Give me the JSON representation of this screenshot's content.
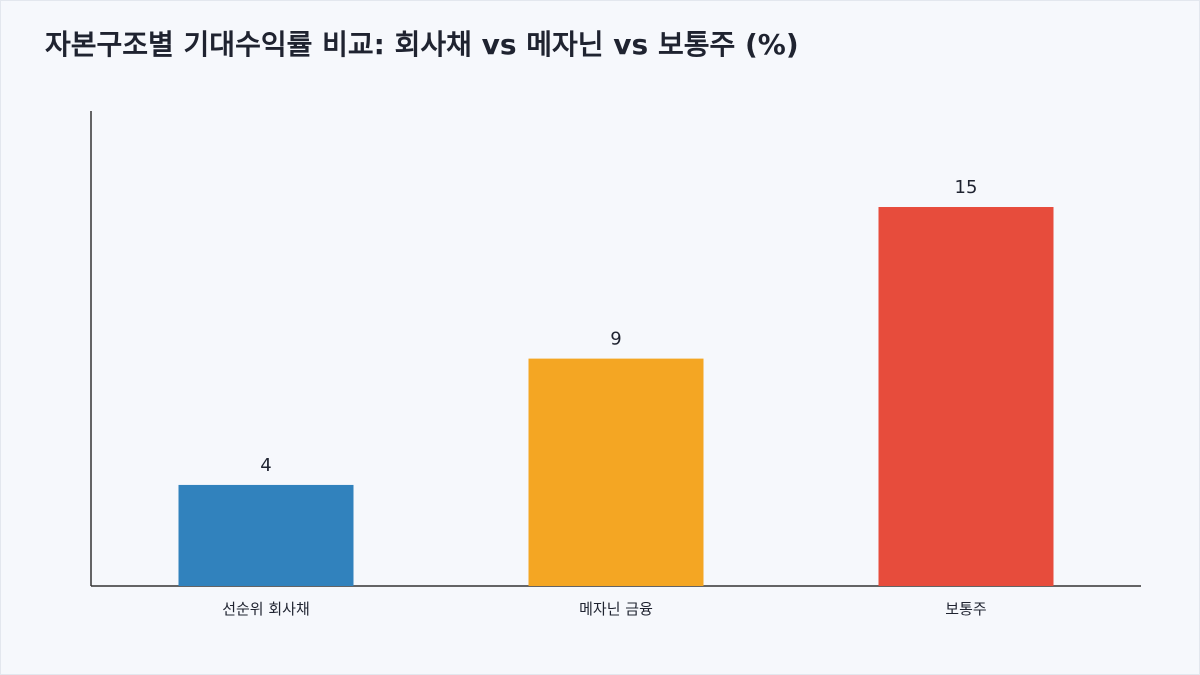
{
  "chart_data": {
    "type": "bar",
    "title": "자본구조별 기대수익률 비교: 회사채 vs 메자닌 vs 보통주 (%)",
    "xlabel": "",
    "ylabel": "",
    "ylim": [
      0,
      18.8
    ],
    "grid": false,
    "categories": [
      "선순위 회사채",
      "메자닌 금융",
      "보통주"
    ],
    "values": [
      4,
      9,
      15
    ],
    "colors": [
      "#3182bd",
      "#f4a623",
      "#e74c3c"
    ]
  }
}
